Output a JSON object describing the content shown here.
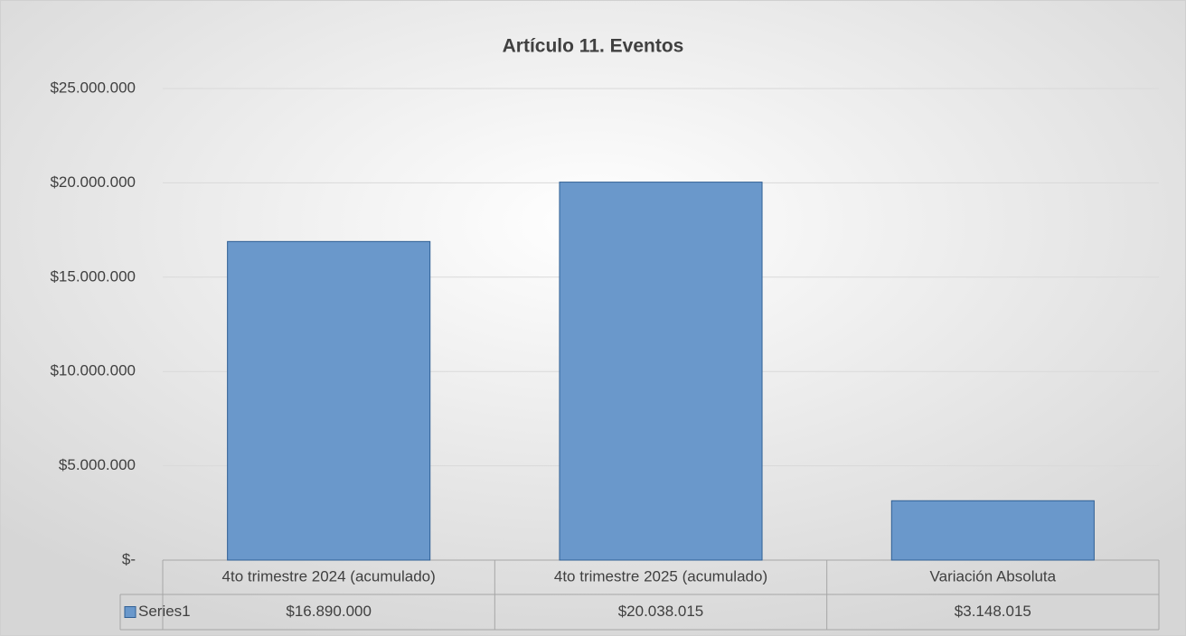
{
  "chart_data": {
    "type": "bar",
    "title": "Artículo 11. Eventos",
    "categories": [
      "4to trimestre 2024 (acumulado)",
      "4to trimestre 2025 (acumulado)",
      "Variación Absoluta"
    ],
    "series": [
      {
        "name": "Series1",
        "color": "#6a98cb",
        "values": [
          16890000,
          20038015,
          3148015
        ],
        "value_labels": [
          "$16.890.000",
          "$20.038.015",
          "$3.148.015"
        ]
      }
    ],
    "ylim": [
      0,
      25000000
    ],
    "yticks": [
      {
        "value": 0,
        "label": "$-"
      },
      {
        "value": 5000000,
        "label": "$5.000.000"
      },
      {
        "value": 10000000,
        "label": "$10.000.000"
      },
      {
        "value": 15000000,
        "label": "$15.000.000"
      },
      {
        "value": 20000000,
        "label": "$20.000.000"
      },
      {
        "value": 25000000,
        "label": "$25.000.000"
      }
    ],
    "grid": true
  }
}
